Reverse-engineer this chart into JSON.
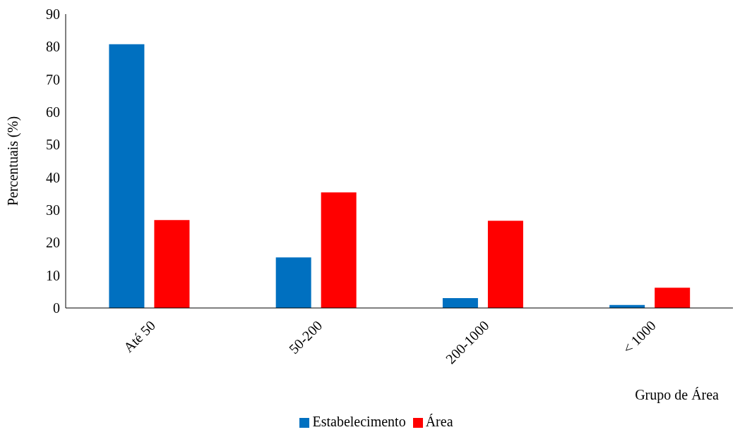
{
  "chart_data": {
    "type": "bar",
    "categories": [
      "Até 50",
      "50-200",
      "200-1000",
      "< 1000"
    ],
    "series": [
      {
        "name": "Estabelecimento",
        "color": "#0070c0",
        "values": [
          80.8,
          15.5,
          3.0,
          0.9
        ]
      },
      {
        "name": "Área",
        "color": "#ff0000",
        "values": [
          26.9,
          35.4,
          26.7,
          6.2
        ]
      }
    ],
    "xlabel": "Grupo de Área",
    "ylabel": "Percentuais (%)",
    "ylim": [
      0,
      90
    ],
    "yticks": [
      0,
      10,
      20,
      30,
      40,
      50,
      60,
      70,
      80,
      90
    ],
    "grid": false,
    "legend": "bottom"
  }
}
